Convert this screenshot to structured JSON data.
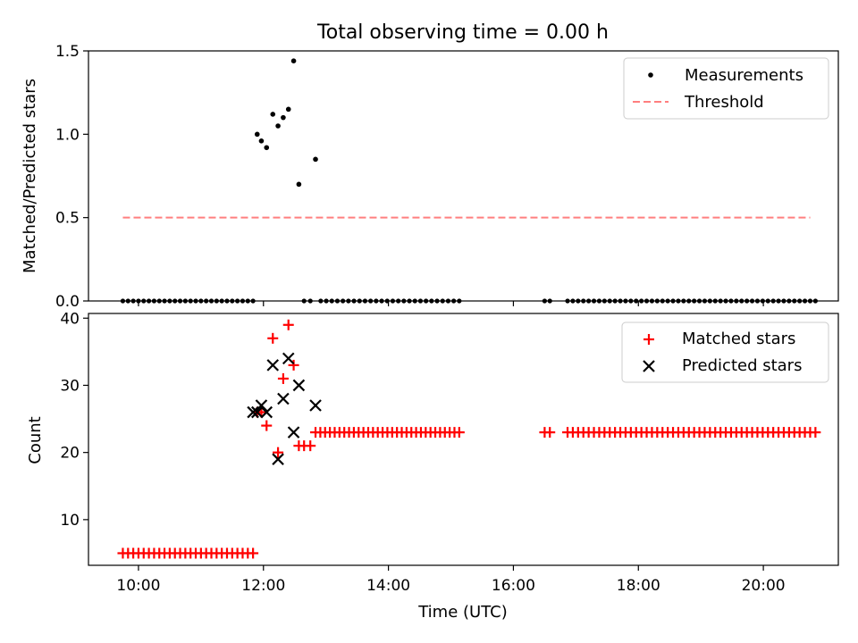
{
  "chart_data": [
    {
      "type": "scatter",
      "title": "Total observing time = 0.00 h",
      "xlabel": "",
      "ylabel": "Matched/Predicted stars",
      "xlim": [
        "09:12",
        "21:12"
      ],
      "ylim": [
        0,
        1.5
      ],
      "yticks": [
        "0.0",
        "0.5",
        "1.0",
        "1.5"
      ],
      "legend": {
        "position": "top-right",
        "measurements_label": "Measurements",
        "threshold_label": "Threshold"
      },
      "series": [
        {
          "name": "Measurements",
          "style": "dot",
          "color": "#000000",
          "points": [
            [
              "11:54",
              1.0
            ],
            [
              "11:58",
              0.96
            ],
            [
              "12:03",
              0.92
            ],
            [
              "12:09",
              1.12
            ],
            [
              "12:14",
              1.05
            ],
            [
              "12:19",
              1.1
            ],
            [
              "12:24",
              1.15
            ],
            [
              "12:29",
              1.44
            ],
            [
              "12:34",
              0.7
            ],
            [
              "12:50",
              0.85
            ]
          ]
        },
        {
          "name": "Measurements",
          "style": "dot",
          "color": "#000000",
          "zero_runs": [
            [
              "09:45",
              "11:50",
              26
            ],
            [
              "12:39",
              "12:45",
              2
            ],
            [
              "12:55",
              "15:08",
              26
            ],
            [
              "16:30",
              "16:35",
              2
            ],
            [
              "16:52",
              "20:50",
              48
            ]
          ]
        },
        {
          "name": "Threshold",
          "style": "dashed",
          "color": "#ff7f7f",
          "points": [
            [
              "09:45",
              0.5
            ],
            [
              "20:45",
              0.5
            ]
          ]
        }
      ]
    },
    {
      "type": "scatter",
      "title": "",
      "xlabel": "Time (UTC)",
      "ylabel": "Count",
      "xlim": [
        "09:12",
        "21:12"
      ],
      "ylim": [
        3.2,
        40.7
      ],
      "xticks": [
        "10:00",
        "12:00",
        "14:00",
        "16:00",
        "18:00",
        "20:00"
      ],
      "yticks": [
        "10",
        "20",
        "30",
        "40"
      ],
      "legend": {
        "position": "top-right",
        "matched_label": "Matched stars",
        "predicted_label": "Predicted stars"
      },
      "series": [
        {
          "name": "Matched stars",
          "marker": "plus",
          "color": "#ff0000",
          "runs": [
            [
              "09:45",
              "11:50",
              26,
              5
            ],
            [
              "12:50",
              "15:08",
              31,
              23
            ],
            [
              "16:30",
              "16:35",
              2,
              23
            ],
            [
              "16:52",
              "20:50",
              48,
              23
            ]
          ],
          "points": [
            [
              "11:54",
              26
            ],
            [
              "11:58",
              26
            ],
            [
              "12:03",
              24
            ],
            [
              "12:09",
              37
            ],
            [
              "12:14",
              20
            ],
            [
              "12:19",
              31
            ],
            [
              "12:24",
              39
            ],
            [
              "12:29",
              33
            ],
            [
              "12:34",
              21
            ],
            [
              "12:39",
              21
            ],
            [
              "12:45",
              21
            ]
          ]
        },
        {
          "name": "Predicted stars",
          "marker": "x",
          "color": "#000000",
          "points": [
            [
              "11:50",
              26
            ],
            [
              "11:54",
              26
            ],
            [
              "11:58",
              27
            ],
            [
              "12:03",
              26
            ],
            [
              "12:09",
              33
            ],
            [
              "12:14",
              19
            ],
            [
              "12:19",
              28
            ],
            [
              "12:24",
              34
            ],
            [
              "12:29",
              23
            ],
            [
              "12:34",
              30
            ],
            [
              "12:50",
              27
            ]
          ]
        }
      ]
    }
  ]
}
